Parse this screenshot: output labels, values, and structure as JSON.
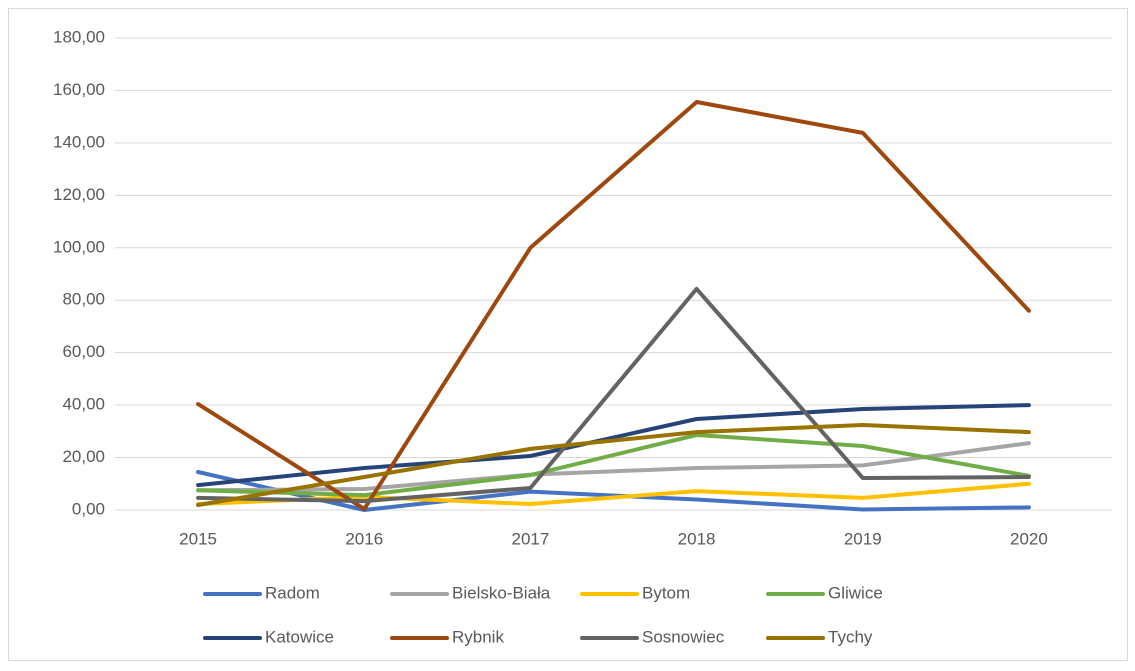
{
  "chart_data": {
    "type": "line",
    "categories": [
      "2015",
      "2016",
      "2017",
      "2018",
      "2019",
      "2020"
    ],
    "series": [
      {
        "name": "Radom",
        "color": "#4472c4",
        "values": [
          14.5,
          0,
          7,
          4,
          0.2,
          1
        ]
      },
      {
        "name": "Bielsko-Biała",
        "color": "#a5a5a5",
        "values": [
          7.5,
          8,
          13.5,
          16,
          17,
          25.5
        ]
      },
      {
        "name": "Bytom",
        "color": "#ffc000",
        "values": [
          2.3,
          5,
          2.3,
          7.2,
          4.6,
          10
        ]
      },
      {
        "name": "Gliwice",
        "color": "#70ad47",
        "values": [
          7.5,
          5.7,
          13.3,
          28.6,
          24.4,
          13
        ]
      },
      {
        "name": "Katowice",
        "color": "#264478",
        "values": [
          9.5,
          16,
          20.6,
          34.7,
          38.5,
          40
        ]
      },
      {
        "name": "Rybnik",
        "color": "#9e480e",
        "values": [
          40.4,
          0.4,
          100,
          155.6,
          143.8,
          76
        ]
      },
      {
        "name": "Sosnowiec",
        "color": "#636363",
        "values": [
          4.6,
          3.4,
          8.4,
          84.3,
          12.2,
          12.6
        ]
      },
      {
        "name": "Tychy",
        "color": "#997300",
        "values": [
          1.9,
          12.6,
          23.3,
          29.7,
          32.4,
          29.7
        ]
      }
    ],
    "ylim": [
      0,
      180
    ],
    "yticks": [
      {
        "value": 0,
        "label": "0,00"
      },
      {
        "value": 20,
        "label": "20,00"
      },
      {
        "value": 40,
        "label": "40,00"
      },
      {
        "value": 60,
        "label": "60,00"
      },
      {
        "value": 80,
        "label": "80,00"
      },
      {
        "value": 100,
        "label": "100,00"
      },
      {
        "value": 120,
        "label": "120,00"
      },
      {
        "value": 140,
        "label": "140,00"
      },
      {
        "value": 160,
        "label": "160,00"
      },
      {
        "value": 180,
        "label": "180,00"
      }
    ],
    "grid": true,
    "legend": "bottom"
  }
}
